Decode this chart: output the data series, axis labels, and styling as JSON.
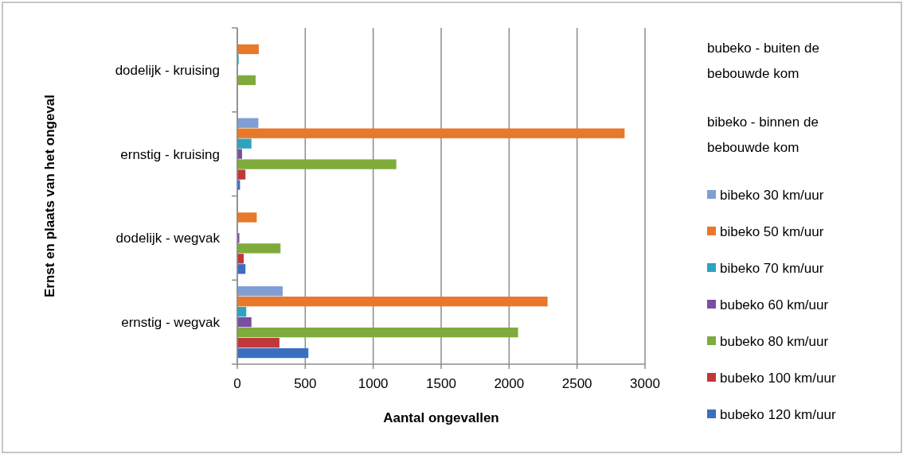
{
  "chart_data": {
    "type": "bar",
    "orientation": "horizontal",
    "xlabel": "Aantal ongevallen",
    "ylabel": "Ernst en plaats van het ongeval",
    "categories": [
      "dodelijk - kruising",
      "ernstig - kruising",
      "dodelijk - wegvak",
      "ernstig - wegvak"
    ],
    "xlim": [
      0,
      3000
    ],
    "xticks": [
      0,
      500,
      1000,
      1500,
      2000,
      2500,
      3000
    ],
    "grid": "x",
    "legend": "right",
    "annotations": [
      "bubeko - buiten de bebouwde kom",
      "bibeko - binnen de bebouwde kom"
    ],
    "series": [
      {
        "name": "bibeko 30 km/uur",
        "color": "#7f9fd4",
        "values": [
          0,
          155,
          null,
          334
        ]
      },
      {
        "name": "bibeko 50 km/uur",
        "color": "#e8782a",
        "values": [
          158,
          2850,
          143,
          2283
        ]
      },
      {
        "name": "bibeko 70 km/uur",
        "color": "#2fa3bd",
        "values": [
          10,
          104,
          0,
          66
        ]
      },
      {
        "name": "bubeko 60 km/uur",
        "color": "#7a4fa0",
        "values": [
          0,
          35,
          15,
          104
        ]
      },
      {
        "name": "bubeko 80 km/uur",
        "color": "#7fab3c",
        "values": [
          135,
          1170,
          318,
          2066
        ]
      },
      {
        "name": "bubeko 100 km/uur",
        "color": "#c0383a",
        "values": [
          0,
          60,
          47,
          310
        ]
      },
      {
        "name": "bubeko 120 km/uur",
        "color": "#3a6fc0",
        "values": [
          0,
          20,
          60,
          523
        ]
      }
    ]
  }
}
